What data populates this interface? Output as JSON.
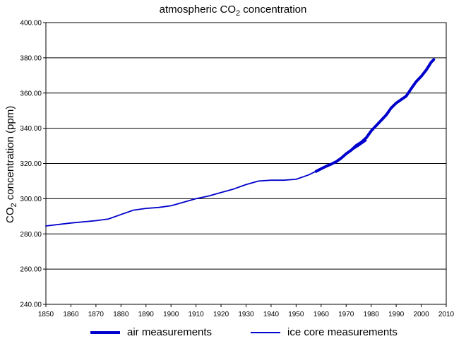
{
  "chart_data": {
    "type": "line",
    "title_prefix": "atmospheric CO",
    "title_sub": "2",
    "title_suffix": " concentration",
    "ylabel_prefix": "CO",
    "ylabel_sub": "2",
    "ylabel_suffix": " concentration (ppm)",
    "xlim": [
      1850,
      2010
    ],
    "ylim": [
      240,
      400
    ],
    "x_ticks": [
      "1850",
      "1860",
      "1870",
      "1880",
      "1890",
      "1900",
      "1910",
      "1920",
      "1930",
      "1940",
      "1950",
      "1960",
      "1970",
      "1980",
      "1990",
      "2000",
      "2010"
    ],
    "y_ticks": [
      "240.00",
      "260.00",
      "280.00",
      "300.00",
      "320.00",
      "340.00",
      "360.00",
      "380.00",
      "400.00"
    ],
    "grid": "horizontal",
    "legend_position": "bottom",
    "series": [
      {
        "name": "air measurements",
        "color": "#0000cc",
        "x": [
          1958,
          1960,
          1962,
          1964,
          1966,
          1968,
          1970,
          1972,
          1974,
          1976,
          1978,
          1980,
          1982,
          1984,
          1986,
          1988,
          1990,
          1992,
          1994,
          1996,
          1998,
          2000,
          2002,
          2004,
          2005
        ],
        "y": [
          315.5,
          317,
          318.4,
          319.6,
          321,
          323,
          325.5,
          327.5,
          330.2,
          332,
          334.5,
          338.5,
          341.5,
          344.5,
          347.5,
          351.5,
          354.3,
          356.3,
          358.2,
          362.5,
          366.5,
          369.5,
          373,
          377.5,
          379
        ]
      },
      {
        "name": "ice core measurements",
        "color": "#0000cc",
        "x": [
          1850,
          1860,
          1870,
          1875,
          1880,
          1885,
          1890,
          1895,
          1900,
          1905,
          1910,
          1915,
          1920,
          1925,
          1930,
          1935,
          1940,
          1945,
          1950,
          1955,
          1960,
          1965,
          1970,
          1975,
          1978
        ],
        "y": [
          284.5,
          286.2,
          287.5,
          288.5,
          291,
          293.5,
          294.5,
          295,
          296,
          298,
          300,
          301.5,
          303.5,
          305.5,
          308,
          310,
          310.5,
          310.5,
          311,
          313.5,
          317,
          320,
          325.5,
          330,
          333
        ]
      }
    ]
  }
}
